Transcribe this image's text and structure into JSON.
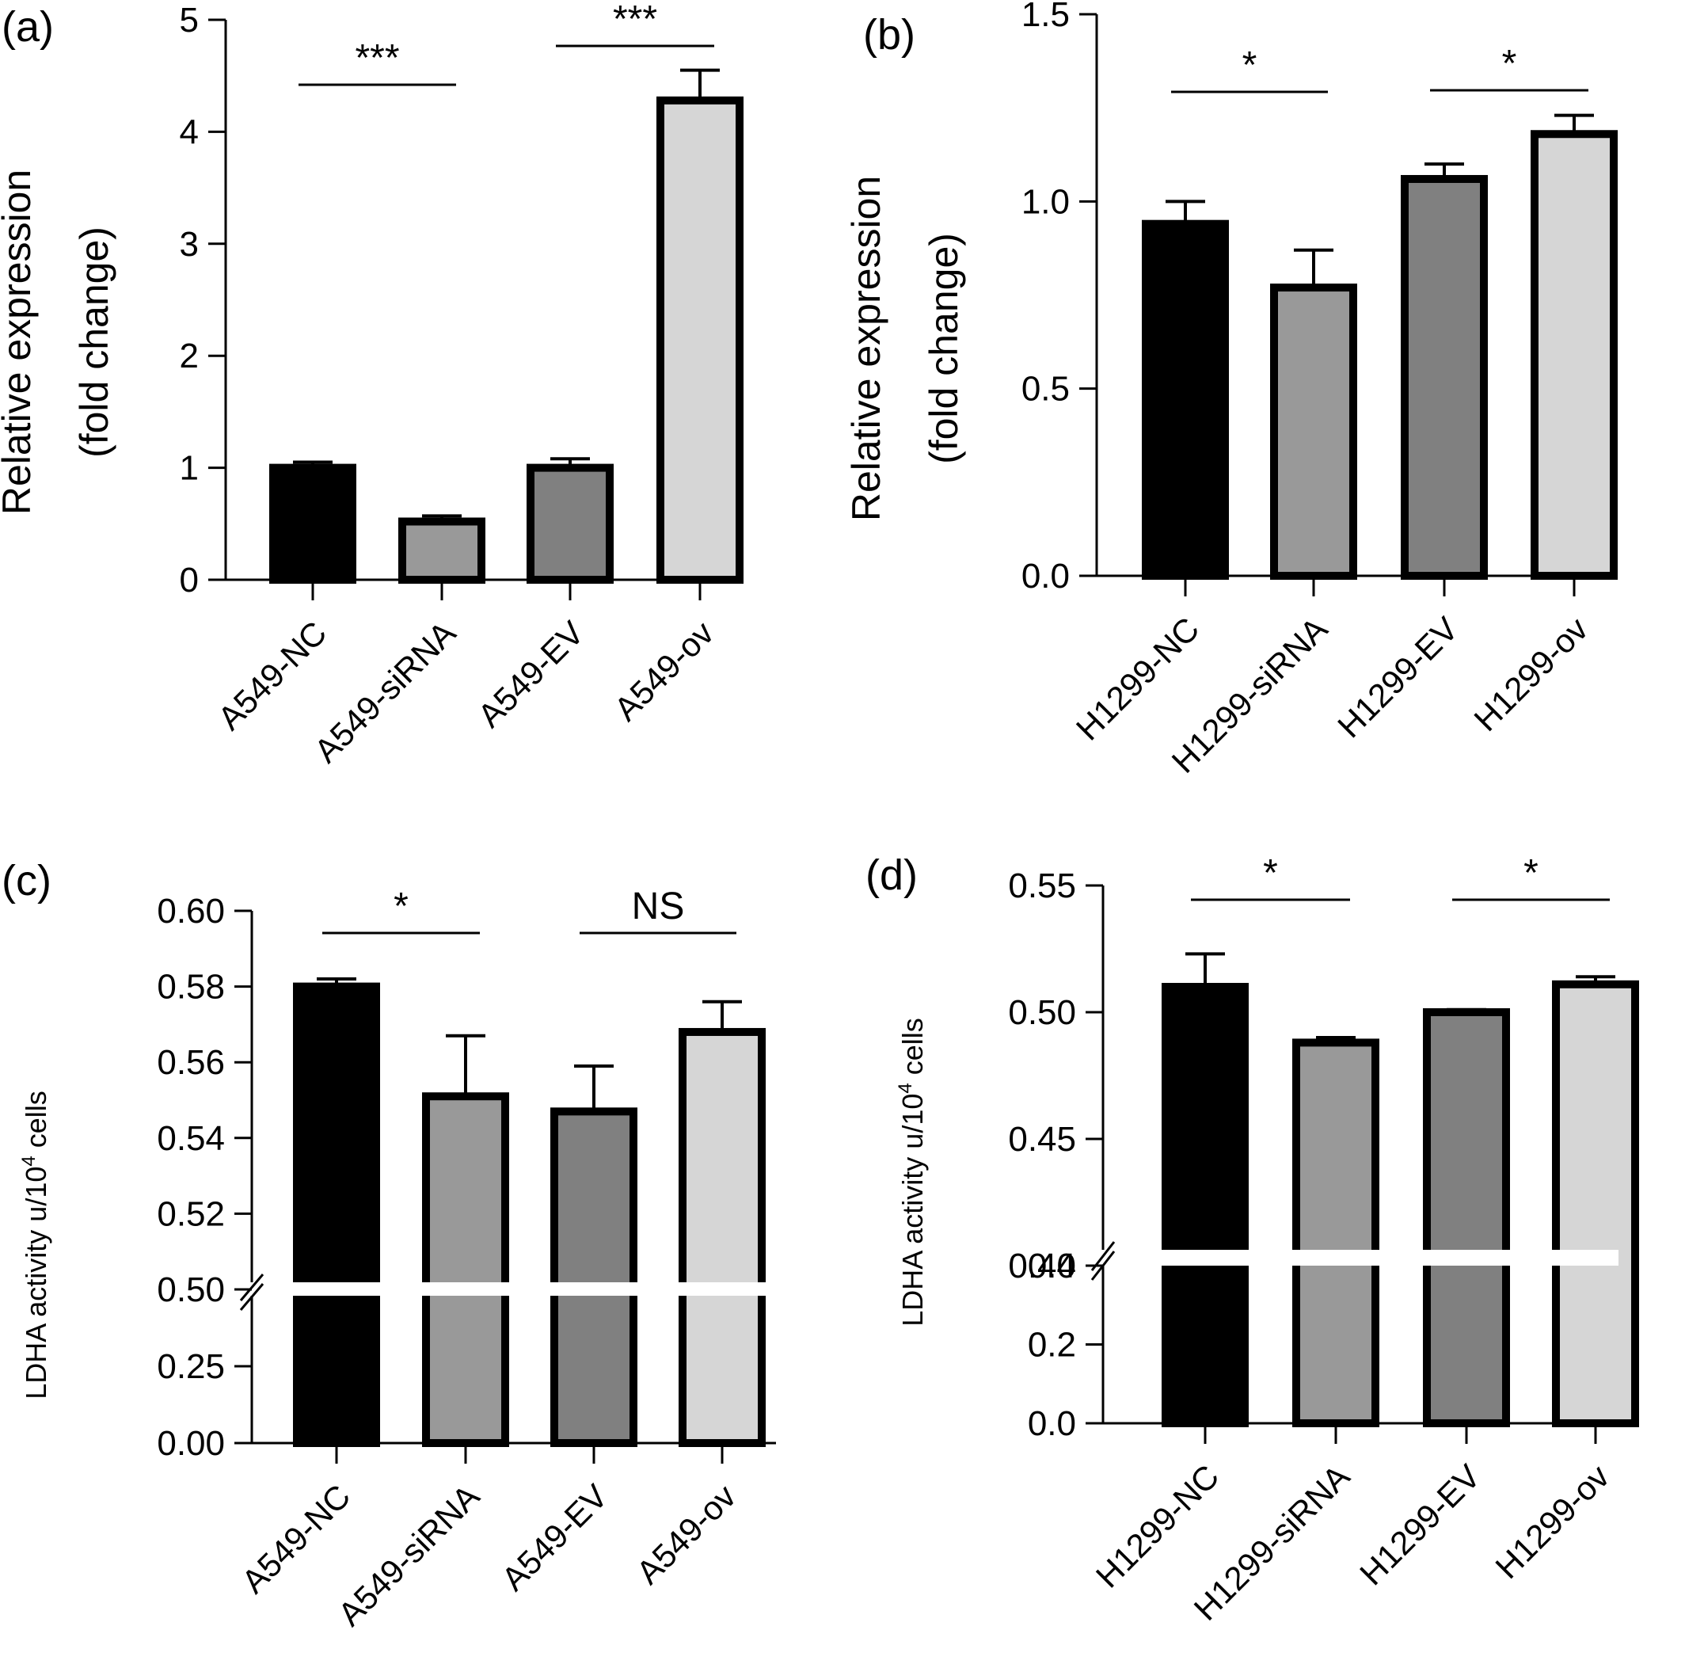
{
  "chart_data": [
    {
      "panel": "(a)",
      "type": "bar",
      "ylabel_lines": [
        "Relative expression",
        "(fold change)"
      ],
      "categories": [
        "A549-NC",
        "A549-siRNA",
        "A549-EV",
        "A549-ov"
      ],
      "values": [
        1.0,
        0.52,
        1.0,
        4.28
      ],
      "errors": [
        0.05,
        0.05,
        0.08,
        0.27
      ],
      "colors": [
        "#000000",
        "#999999",
        "#808080",
        "#d6d6d6"
      ],
      "ylim": [
        0,
        5
      ],
      "yticks": [
        {
          "value": 0,
          "label": "0"
        },
        {
          "value": 1,
          "label": "1"
        },
        {
          "value": 2,
          "label": "2"
        },
        {
          "value": 3,
          "label": "3"
        },
        {
          "value": 4,
          "label": "4"
        },
        {
          "value": 5,
          "label": "5"
        }
      ],
      "significance": [
        {
          "from": 0,
          "to": 1,
          "label": "***"
        },
        {
          "from": 2,
          "to": 3,
          "label": "***"
        }
      ]
    },
    {
      "panel": "(b)",
      "type": "bar",
      "ylabel_lines": [
        "Relative expression",
        "(fold change)"
      ],
      "categories": [
        "H1299-NC",
        "H1299-siRNA",
        "H1299-EV",
        "H1299-ov"
      ],
      "values": [
        0.94,
        0.77,
        1.06,
        1.18
      ],
      "errors": [
        0.06,
        0.1,
        0.04,
        0.05
      ],
      "colors": [
        "#000000",
        "#999999",
        "#808080",
        "#d6d6d6"
      ],
      "ylim": [
        0,
        1.5
      ],
      "yticks": [
        {
          "value": 0,
          "label": "0.0"
        },
        {
          "value": 0.5,
          "label": "0.5"
        },
        {
          "value": 1.0,
          "label": "1.0"
        },
        {
          "value": 1.5,
          "label": "1.5"
        }
      ],
      "significance": [
        {
          "from": 0,
          "to": 1,
          "label": "*"
        },
        {
          "from": 2,
          "to": 3,
          "label": "*"
        }
      ]
    },
    {
      "panel": "(c)",
      "type": "bar",
      "ylabel": "LDHA activity u/10",
      "ylabel_sup": "4",
      "ylabel_suffix": " cells",
      "categories": [
        "A549-NC",
        "A549-siRNA",
        "A549-EV",
        "A549-ov"
      ],
      "values": [
        0.58,
        0.551,
        0.547,
        0.568
      ],
      "errors": [
        0.002,
        0.016,
        0.012,
        0.008
      ],
      "colors": [
        "#000000",
        "#999999",
        "#808080",
        "#d6d6d6"
      ],
      "axis_break": true,
      "lower_segment": {
        "ylim": [
          0,
          0.5
        ],
        "yticks": [
          {
            "value": 0,
            "label": "0.00"
          },
          {
            "value": 0.25,
            "label": "0.25"
          },
          {
            "value": 0.5,
            "label": "0.50"
          }
        ]
      },
      "upper_segment": {
        "ylim": [
          0.5,
          0.6
        ],
        "yticks": [
          {
            "value": 0.52,
            "label": "0.52"
          },
          {
            "value": 0.54,
            "label": "0.54"
          },
          {
            "value": 0.56,
            "label": "0.56"
          },
          {
            "value": 0.58,
            "label": "0.58"
          },
          {
            "value": 0.6,
            "label": "0.60"
          }
        ]
      },
      "significance": [
        {
          "from": 0,
          "to": 1,
          "label": "*"
        },
        {
          "from": 2,
          "to": 3,
          "label": "NS"
        }
      ]
    },
    {
      "panel": "(d)",
      "type": "bar",
      "ylabel": "LDHA activity u/10",
      "ylabel_sup": "4",
      "ylabel_suffix": " cells",
      "categories": [
        "H1299-NC",
        "H1299-siRNA",
        "H1299-EV",
        "H1299-ov"
      ],
      "values": [
        0.51,
        0.488,
        0.5,
        0.511
      ],
      "errors": [
        0.013,
        0.002,
        0.001,
        0.003
      ],
      "colors": [
        "#000000",
        "#999999",
        "#808080",
        "#d6d6d6"
      ],
      "axis_break": true,
      "lower_segment": {
        "ylim": [
          0,
          0.4
        ],
        "yticks": [
          {
            "value": 0,
            "label": "0.0"
          },
          {
            "value": 0.2,
            "label": "0.2"
          },
          {
            "value": 0.4,
            "label": "0.4"
          }
        ]
      },
      "upper_segment": {
        "ylim": [
          0.4,
          0.55
        ],
        "yticks": [
          {
            "value": 0.4,
            "label": "0.40"
          },
          {
            "value": 0.45,
            "label": "0.45"
          },
          {
            "value": 0.5,
            "label": "0.50"
          },
          {
            "value": 0.55,
            "label": "0.55"
          }
        ]
      },
      "significance": [
        {
          "from": 0,
          "to": 1,
          "label": "*"
        },
        {
          "from": 2,
          "to": 3,
          "label": "*"
        }
      ]
    }
  ]
}
